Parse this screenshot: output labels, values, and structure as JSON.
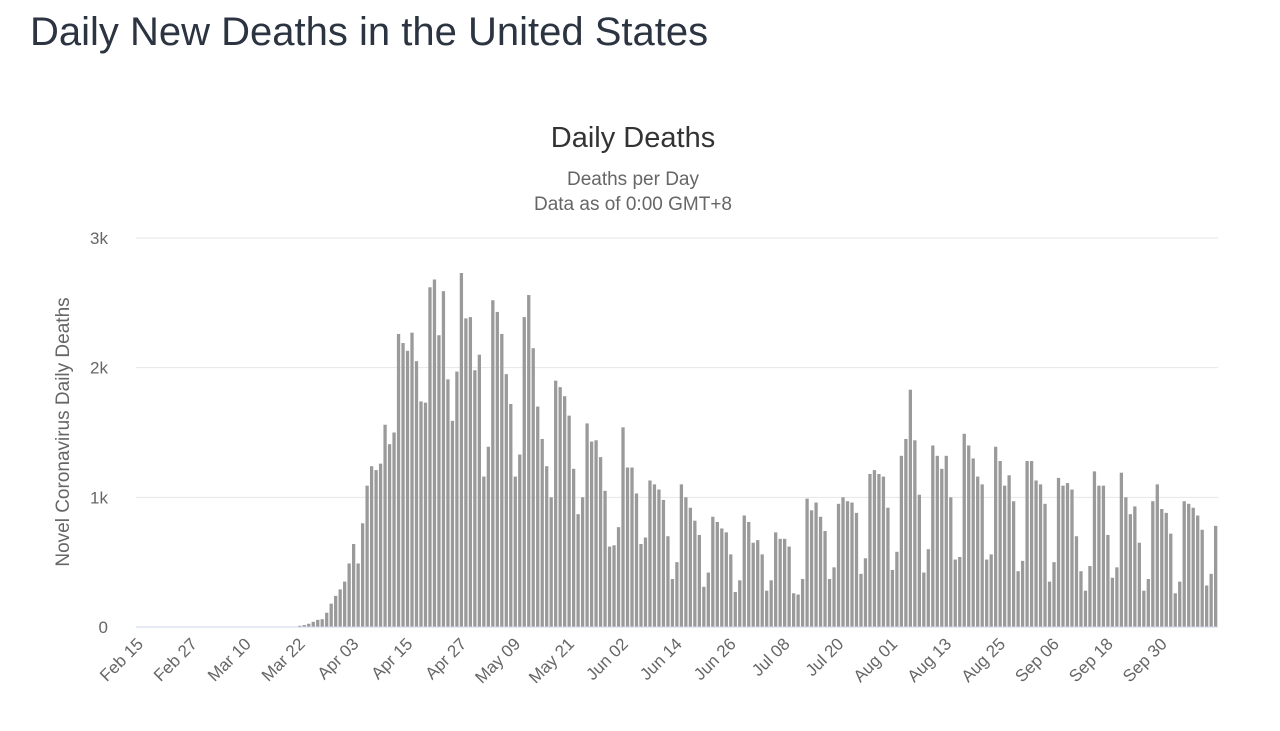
{
  "page": {
    "title": "Daily New Deaths in the United States"
  },
  "colors": {
    "bar": "#9a9a9a",
    "grid": "#e6e6e6",
    "text": "#666666"
  },
  "chart_data": {
    "type": "bar",
    "title": "Daily Deaths",
    "subtitle": [
      "Deaths per Day",
      "Data as of 0:00 GMT+8"
    ],
    "ylabel": "Novel Coronavirus Daily Deaths",
    "xlabel": "",
    "ylim": [
      0,
      3000
    ],
    "yticks": [
      {
        "value": 0,
        "label": "0"
      },
      {
        "value": 1000,
        "label": "1k"
      },
      {
        "value": 2000,
        "label": "2k"
      },
      {
        "value": 3000,
        "label": "3k"
      }
    ],
    "start_date": "Feb 15",
    "xtick_labels": [
      "Feb 15",
      "Feb 27",
      "Mar 10",
      "Mar 22",
      "Apr 03",
      "Apr 15",
      "Apr 27",
      "May 09",
      "May 21",
      "Jun 02",
      "Jun 14",
      "Jun 26",
      "Jul 08",
      "Jul 20",
      "Aug 01",
      "Aug 13",
      "Aug 25",
      "Sep 06",
      "Sep 18",
      "Sep 30"
    ],
    "xtick_every": 12,
    "grid": true,
    "legend": "none",
    "values": [
      0,
      0,
      0,
      0,
      0,
      0,
      0,
      0,
      0,
      0,
      0,
      0,
      0,
      0,
      0,
      0,
      0,
      0,
      0,
      0,
      0,
      0,
      0,
      0,
      0,
      0,
      0,
      0,
      0,
      0,
      0,
      0,
      0,
      0,
      0,
      0,
      10,
      15,
      25,
      40,
      55,
      60,
      110,
      180,
      240,
      290,
      350,
      490,
      640,
      490,
      800,
      1090,
      1240,
      1210,
      1260,
      1560,
      1410,
      1500,
      2260,
      2190,
      2130,
      2270,
      2050,
      1740,
      1730,
      2620,
      2680,
      2250,
      2590,
      1910,
      1590,
      1970,
      2730,
      2380,
      2390,
      1980,
      2100,
      1160,
      1390,
      2520,
      2430,
      2260,
      1950,
      1720,
      1160,
      1330,
      2390,
      2560,
      2150,
      1700,
      1450,
      1240,
      1000,
      1900,
      1850,
      1780,
      1630,
      1220,
      870,
      1000,
      1570,
      1430,
      1440,
      1310,
      1050,
      620,
      630,
      770,
      1540,
      1230,
      1230,
      1030,
      640,
      690,
      1130,
      1100,
      1060,
      980,
      700,
      370,
      500,
      1100,
      1000,
      920,
      820,
      710,
      310,
      420,
      850,
      810,
      760,
      730,
      560,
      270,
      360,
      860,
      810,
      650,
      670,
      560,
      280,
      360,
      730,
      680,
      680,
      620,
      260,
      250,
      370,
      990,
      900,
      960,
      850,
      740,
      370,
      460,
      950,
      1000,
      970,
      960,
      880,
      410,
      530,
      1180,
      1210,
      1180,
      1160,
      920,
      440,
      580,
      1320,
      1450,
      1830,
      1440,
      1020,
      420,
      600,
      1400,
      1320,
      1220,
      1320,
      1000,
      520,
      540,
      1490,
      1400,
      1300,
      1160,
      1100,
      520,
      560,
      1390,
      1280,
      1090,
      1170,
      970,
      430,
      510,
      1280,
      1280,
      1130,
      1100,
      950,
      350,
      500,
      1150,
      1090,
      1110,
      1060,
      700,
      430,
      280,
      470,
      1200,
      1090,
      1090,
      710,
      380,
      460,
      1190,
      1000,
      870,
      930,
      650,
      280,
      370,
      970,
      1100,
      910,
      880,
      720,
      260,
      350,
      970,
      950,
      920,
      860,
      750,
      320,
      410,
      780
    ]
  }
}
